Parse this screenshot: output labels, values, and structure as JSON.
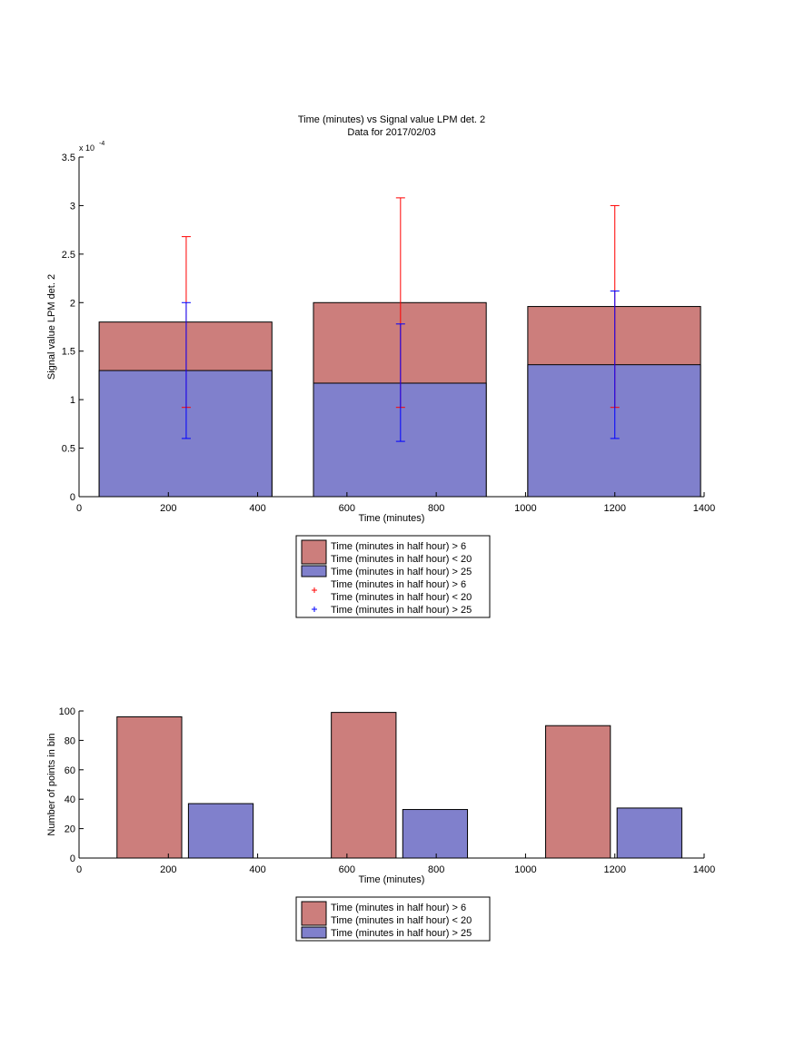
{
  "chart_data": [
    {
      "type": "bar",
      "title": "Time (minutes) vs Signal value LPM det. 2",
      "subtitle": "Data for 2017/02/03",
      "xlabel": "Time (minutes)",
      "ylabel": "Signal value LPM det. 2",
      "y_exponent_label": "x 10",
      "y_exponent_power": "-4",
      "xlim": [
        0,
        1400
      ],
      "ylim": [
        0,
        3.5
      ],
      "xticks": [
        0,
        200,
        400,
        600,
        800,
        1000,
        1200,
        1400
      ],
      "yticks": [
        0,
        0.5,
        1,
        1.5,
        2,
        2.5,
        3,
        3.5
      ],
      "bar_ranges": [
        [
          45,
          432
        ],
        [
          525,
          912
        ],
        [
          1005,
          1392
        ]
      ],
      "series": [
        {
          "name": "Time (minutes in half hour) > 6\nTime (minutes in half hour) < 20",
          "color": "#cc7e7c",
          "values": [
            1.8,
            2.0,
            1.96
          ],
          "error_x": [
            240,
            720,
            1200
          ],
          "error_low": [
            0.92,
            0.92,
            0.92
          ],
          "error_high": [
            2.68,
            3.08,
            3.0
          ],
          "error_color": "#ff0000"
        },
        {
          "name": "Time (minutes in half hour) > 25",
          "color": "#8080cc",
          "values": [
            1.3,
            1.17,
            1.36
          ],
          "error_x": [
            240,
            720,
            1200
          ],
          "error_low": [
            0.6,
            0.57,
            0.6
          ],
          "error_high": [
            2.0,
            1.78,
            2.12
          ],
          "error_color": "#0000ff"
        }
      ],
      "legend": [
        {
          "label": "Time (minutes in half hour) > 6",
          "label2": "Time (minutes in half hour) < 20",
          "kind": "patch",
          "color": "#cc7e7c"
        },
        {
          "label": "Time (minutes in half hour) > 25",
          "kind": "patch",
          "color": "#8080cc"
        },
        {
          "label": "Time (minutes in half hour) > 6",
          "label2": "Time (minutes in half hour) < 20",
          "kind": "marker",
          "color": "#ff0000"
        },
        {
          "label": "Time (minutes in half hour) > 25",
          "kind": "marker",
          "color": "#0000ff"
        }
      ]
    },
    {
      "type": "bar",
      "xlabel": "Time (minutes)",
      "ylabel": "Number of points in bin",
      "xlim": [
        0,
        1400
      ],
      "ylim": [
        0,
        100
      ],
      "xticks": [
        0,
        200,
        400,
        600,
        800,
        1000,
        1200,
        1400
      ],
      "yticks": [
        0,
        20,
        40,
        60,
        80,
        100
      ],
      "series": [
        {
          "name": "Time (minutes in half hour) > 6\nTime (minutes in half hour) < 20",
          "color": "#cc7e7c",
          "x_ranges": [
            [
              85,
              230
            ],
            [
              565,
              710
            ],
            [
              1045,
              1190
            ]
          ],
          "values": [
            96,
            99,
            90
          ]
        },
        {
          "name": "Time (minutes in half hour) > 25",
          "color": "#8080cc",
          "x_ranges": [
            [
              245,
              390
            ],
            [
              725,
              870
            ],
            [
              1205,
              1350
            ]
          ],
          "values": [
            37,
            33,
            34
          ]
        }
      ],
      "legend": [
        {
          "label": "Time (minutes in half hour) > 6",
          "label2": "Time (minutes in half hour) < 20",
          "kind": "patch",
          "color": "#cc7e7c"
        },
        {
          "label": "Time (minutes in half hour) > 25",
          "kind": "patch",
          "color": "#8080cc"
        }
      ]
    }
  ]
}
